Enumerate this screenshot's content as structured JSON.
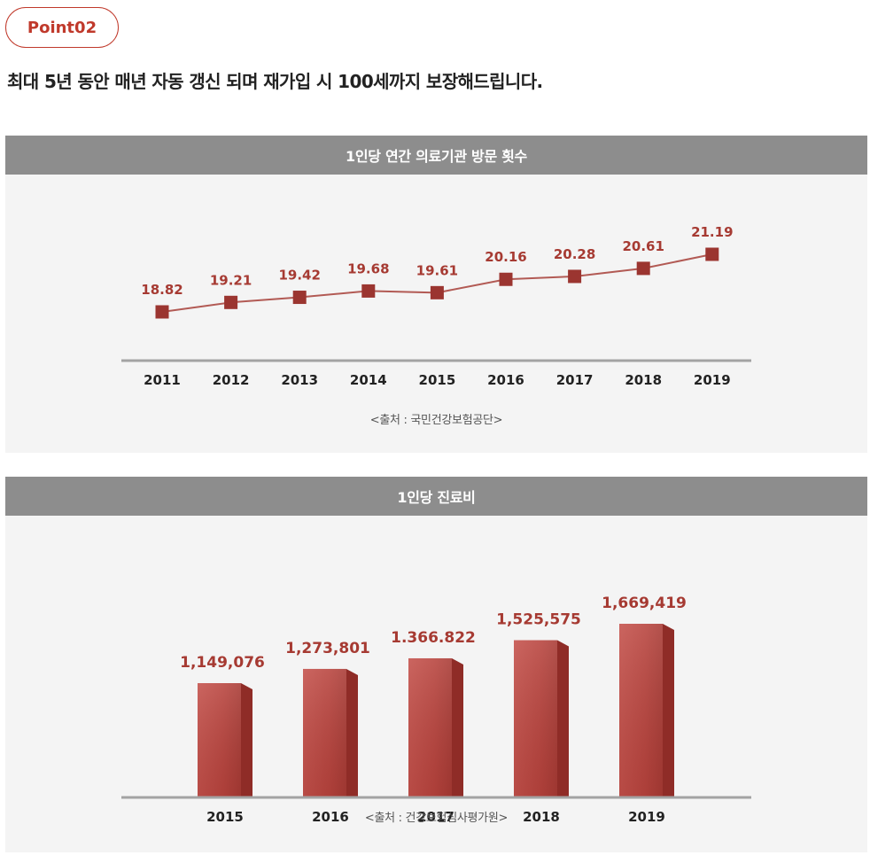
{
  "badge": {
    "label": "Point02"
  },
  "headline": "최대 5년 동안 매년 자동 갱신 되며 재가입 시 100세까지 보장해드립니다.",
  "colors": {
    "accent": "#c0392b",
    "line_marker": "#9b3530",
    "value_label": "#a63a32",
    "header_bg": "#8d8d8d",
    "panel_bg": "#f4f4f4"
  },
  "chart_data": [
    {
      "type": "line",
      "title": "1인당 연간 의료기관 방문 횟수",
      "x": [
        "2011",
        "2012",
        "2013",
        "2014",
        "2015",
        "2016",
        "2017",
        "2018",
        "2019"
      ],
      "values": [
        18.82,
        19.21,
        19.42,
        19.68,
        19.61,
        20.16,
        20.28,
        20.61,
        21.19
      ],
      "value_labels": [
        "18.82",
        "19.21",
        "19.42",
        "19.68",
        "19.61",
        "20.16",
        "20.28",
        "20.61",
        "21.19"
      ],
      "xlabel": "",
      "ylabel": "",
      "grid": false,
      "source": "<출처 : 국민건강보험공단>"
    },
    {
      "type": "bar",
      "title": "1인당 진료비",
      "categories": [
        "2015",
        "2016",
        "2017",
        "2018",
        "2019"
      ],
      "values": [
        1149076,
        1273801,
        1366822,
        1525575,
        1669419
      ],
      "value_labels": [
        "1,149,076",
        "1,273,801",
        "1.366.822",
        "1,525,575",
        "1,669,419"
      ],
      "xlabel": "",
      "ylabel": "",
      "grid": false,
      "source": "<출처 : 건강보험심사평가원>"
    }
  ]
}
